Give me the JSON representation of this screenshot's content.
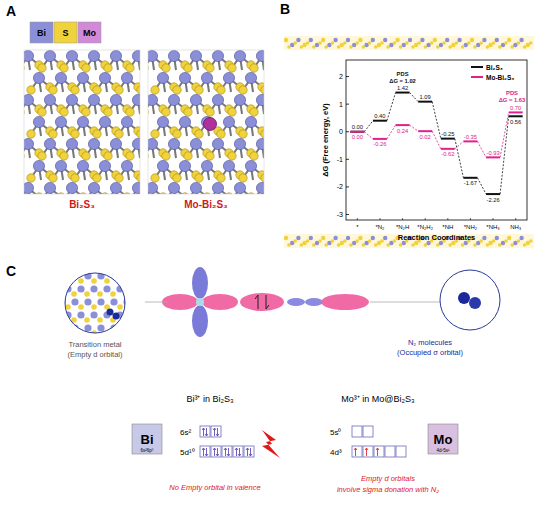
{
  "panel_a": {
    "label": "A",
    "legend": [
      {
        "symbol": "Bi",
        "color": "#8a8fd8"
      },
      {
        "symbol": "S",
        "color": "#f0d23c"
      },
      {
        "symbol": "Mo",
        "color": "#d08ad8"
      }
    ],
    "structures": [
      "Bi₂S₃",
      "Mo-Bi₂S₃"
    ]
  },
  "panel_b": {
    "label": "B"
  },
  "chart_data": {
    "type": "line",
    "y_label": "ΔG (Free energy, eV)",
    "x_label": "Reaction Coordinates",
    "categories": [
      "*",
      "*N₂",
      "*N₂H",
      "*N₂H₂",
      "*NH",
      "*NH₂",
      "*NH₃",
      "NH₃"
    ],
    "series": [
      {
        "name": "Bi₂S₃",
        "color": "#111111",
        "line_style": "dashed",
        "values": [
          0.0,
          0.4,
          1.42,
          1.09,
          -0.25,
          -1.67,
          -2.26,
          0.56
        ],
        "value_labels": [
          "0.00",
          "0.40",
          "1.42",
          "1.09",
          "-0.25",
          "-1.67",
          "-2.26",
          "0.56"
        ]
      },
      {
        "name": "Mo-Bi₂S₃",
        "color": "#e0208c",
        "line_style": "dashed",
        "values": [
          0.0,
          -0.26,
          0.24,
          0.02,
          -0.62,
          -0.35,
          -0.93,
          0.7
        ],
        "value_labels": [
          "0.00",
          "-0.26",
          "0.24",
          "0.02",
          "-0.62",
          "-0.35",
          "-0.93",
          "0.70"
        ]
      }
    ],
    "annotations": [
      {
        "series": 0,
        "index": 2,
        "text": "PDS",
        "delta_label": "ΔG = 1.02"
      },
      {
        "series": 1,
        "index": 7,
        "text": "PDS",
        "delta_label": "ΔG = 1.63"
      }
    ],
    "ylim": [
      -3.2,
      2.6
    ],
    "yticks": [
      -3,
      -2,
      -1,
      0,
      1,
      2
    ],
    "data_labels": true,
    "legend": "top right"
  },
  "panel_c": {
    "label": "C",
    "metal_caption": [
      "Transition metal",
      "(Empty d orbital)"
    ],
    "n2_caption": [
      "N₂ molecules",
      "(Occupied σ orbital)"
    ],
    "bi": {
      "title": "Bi³⁺ in Bi₂S₃",
      "symbol": "Bi",
      "config": "6s²6p³",
      "orbitals": [
        {
          "label": "6s²",
          "electrons": [
            2,
            2
          ]
        },
        {
          "label": "5d¹⁰",
          "electrons": [
            2,
            2,
            2,
            2,
            2
          ]
        }
      ],
      "notes": [
        "No Empty orbital in valence"
      ]
    },
    "mo": {
      "title": "Mo³⁺ in Mo@Bi₂S₃",
      "symbol": "Mo",
      "config": "4d⁵5s¹",
      "orbitals": [
        {
          "label": "5s⁰",
          "electrons": [
            0,
            0
          ]
        },
        {
          "label": "4d³",
          "electrons": [
            1,
            1,
            1,
            0,
            0
          ]
        }
      ],
      "notes": [
        "Empty d orbitals",
        "involve sigma donation with N₂"
      ]
    }
  }
}
